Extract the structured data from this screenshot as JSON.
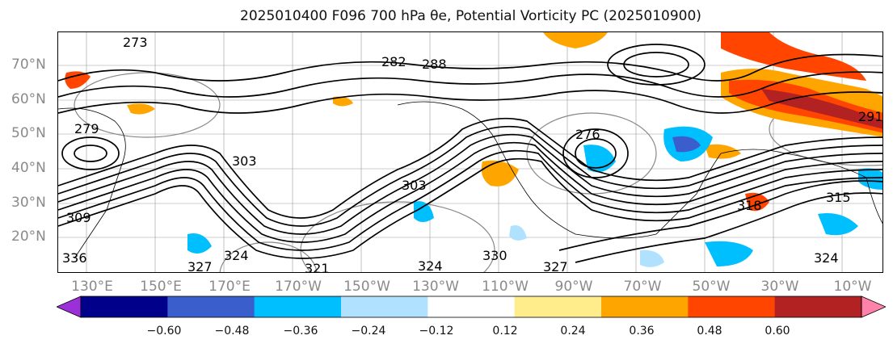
{
  "title": "2025010400 F096 700 hPa θe, Potential Vorticity PC (2025010900)",
  "lat_labels": [
    "70°N",
    "60°N",
    "50°N",
    "40°N",
    "30°N",
    "20°N"
  ],
  "lon_labels": [
    "130°E",
    "150°E",
    "170°E",
    "170°W",
    "150°W",
    "130°W",
    "110°W",
    "90°W",
    "70°W",
    "50°W",
    "30°W",
    "10°W"
  ],
  "contour_labels": [
    "273",
    "282",
    "288",
    "276",
    "279",
    "303",
    "309",
    "303",
    "318",
    "324",
    "327",
    "321",
    "324",
    "330",
    "327",
    "315",
    "324",
    "291",
    "336"
  ],
  "colorbar": {
    "tick_labels": [
      "−0.60",
      "−0.48",
      "−0.36",
      "−0.24",
      "−0.12",
      "0.12",
      "0.24",
      "0.36",
      "0.48",
      "0.60"
    ],
    "colors": [
      "#9b30d9",
      "#00008b",
      "#3a5fcd",
      "#00bfff",
      "#b0e2ff",
      "#ffffff",
      "#ffec8b",
      "#ffa500",
      "#ff4500",
      "#b22222",
      "#ff82ab"
    ]
  }
}
